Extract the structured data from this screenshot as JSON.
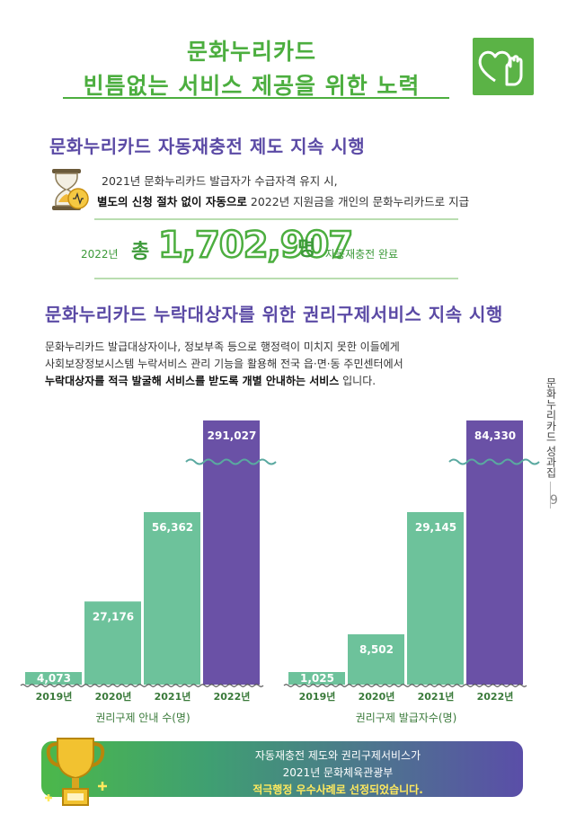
{
  "header": {
    "title_line1": "문화누리카드",
    "title_line2": "빈틈없는 서비스 제공을 위한 노력"
  },
  "section1": {
    "heading": "문화누리카드 자동재충전 제도 지속 시행",
    "line1": "2021년 문화누리카드 발급자가 수급자격 유지 시,",
    "line2_bold": "별도의 신청 절차 없이 자동으로",
    "line2_rest": " 2022년 지원금을 개인의 문화누리카드로 지급",
    "stat": {
      "year": "2022년",
      "prefix": "총",
      "number": "1,702,907",
      "unit": "명",
      "suffix": "자동재충전 완료"
    }
  },
  "section2": {
    "heading": "문화누리카드 누락대상자를 위한 권리구제서비스 지속 시행",
    "p1": "문화누리카드 발급대상자이나, 정보부족 등으로 행정력이 미치지 못한 이들에게",
    "p2": "사회보장정보시스템 누락서비스 관리 기능을 활용해 전국 읍·면·동 주민센터에서",
    "p3_bold": "누락대상자를 적극 발굴해 서비스를 받도록 개별 안내하는 서비스",
    "p3_rest": " 입니다."
  },
  "side": {
    "label": "문화누리카드 성과집",
    "page": "9"
  },
  "colors": {
    "green": "#4cae3f",
    "purple_text": "#5b4aa5",
    "bar_green": "#6dc29b",
    "bar_purple": "#6a51a6",
    "wave": "#5aa9a0"
  },
  "chart_data": [
    {
      "type": "bar",
      "categories": [
        "2019년",
        "2020년",
        "2021년",
        "2022년"
      ],
      "values": [
        4073,
        27176,
        56362,
        291027
      ],
      "value_labels": [
        "4,073",
        "27,176",
        "56,362",
        "291,027"
      ],
      "xlabel": "권리구제 안내 수(명)",
      "axis_break": true
    },
    {
      "type": "bar",
      "categories": [
        "2019년",
        "2020년",
        "2021년",
        "2022년"
      ],
      "values": [
        1025,
        8502,
        29145,
        84330
      ],
      "value_labels": [
        "1,025",
        "8,502",
        "29,145",
        "84,330"
      ],
      "xlabel": "권리구제 발급자수(명)",
      "axis_break": true
    }
  ],
  "banner": {
    "line1": "자동재충전 제도와 권리구제서비스가",
    "line2": "2021년 문화체육관광부",
    "line3": "적극행정 우수사례로 선정되었습니다."
  }
}
